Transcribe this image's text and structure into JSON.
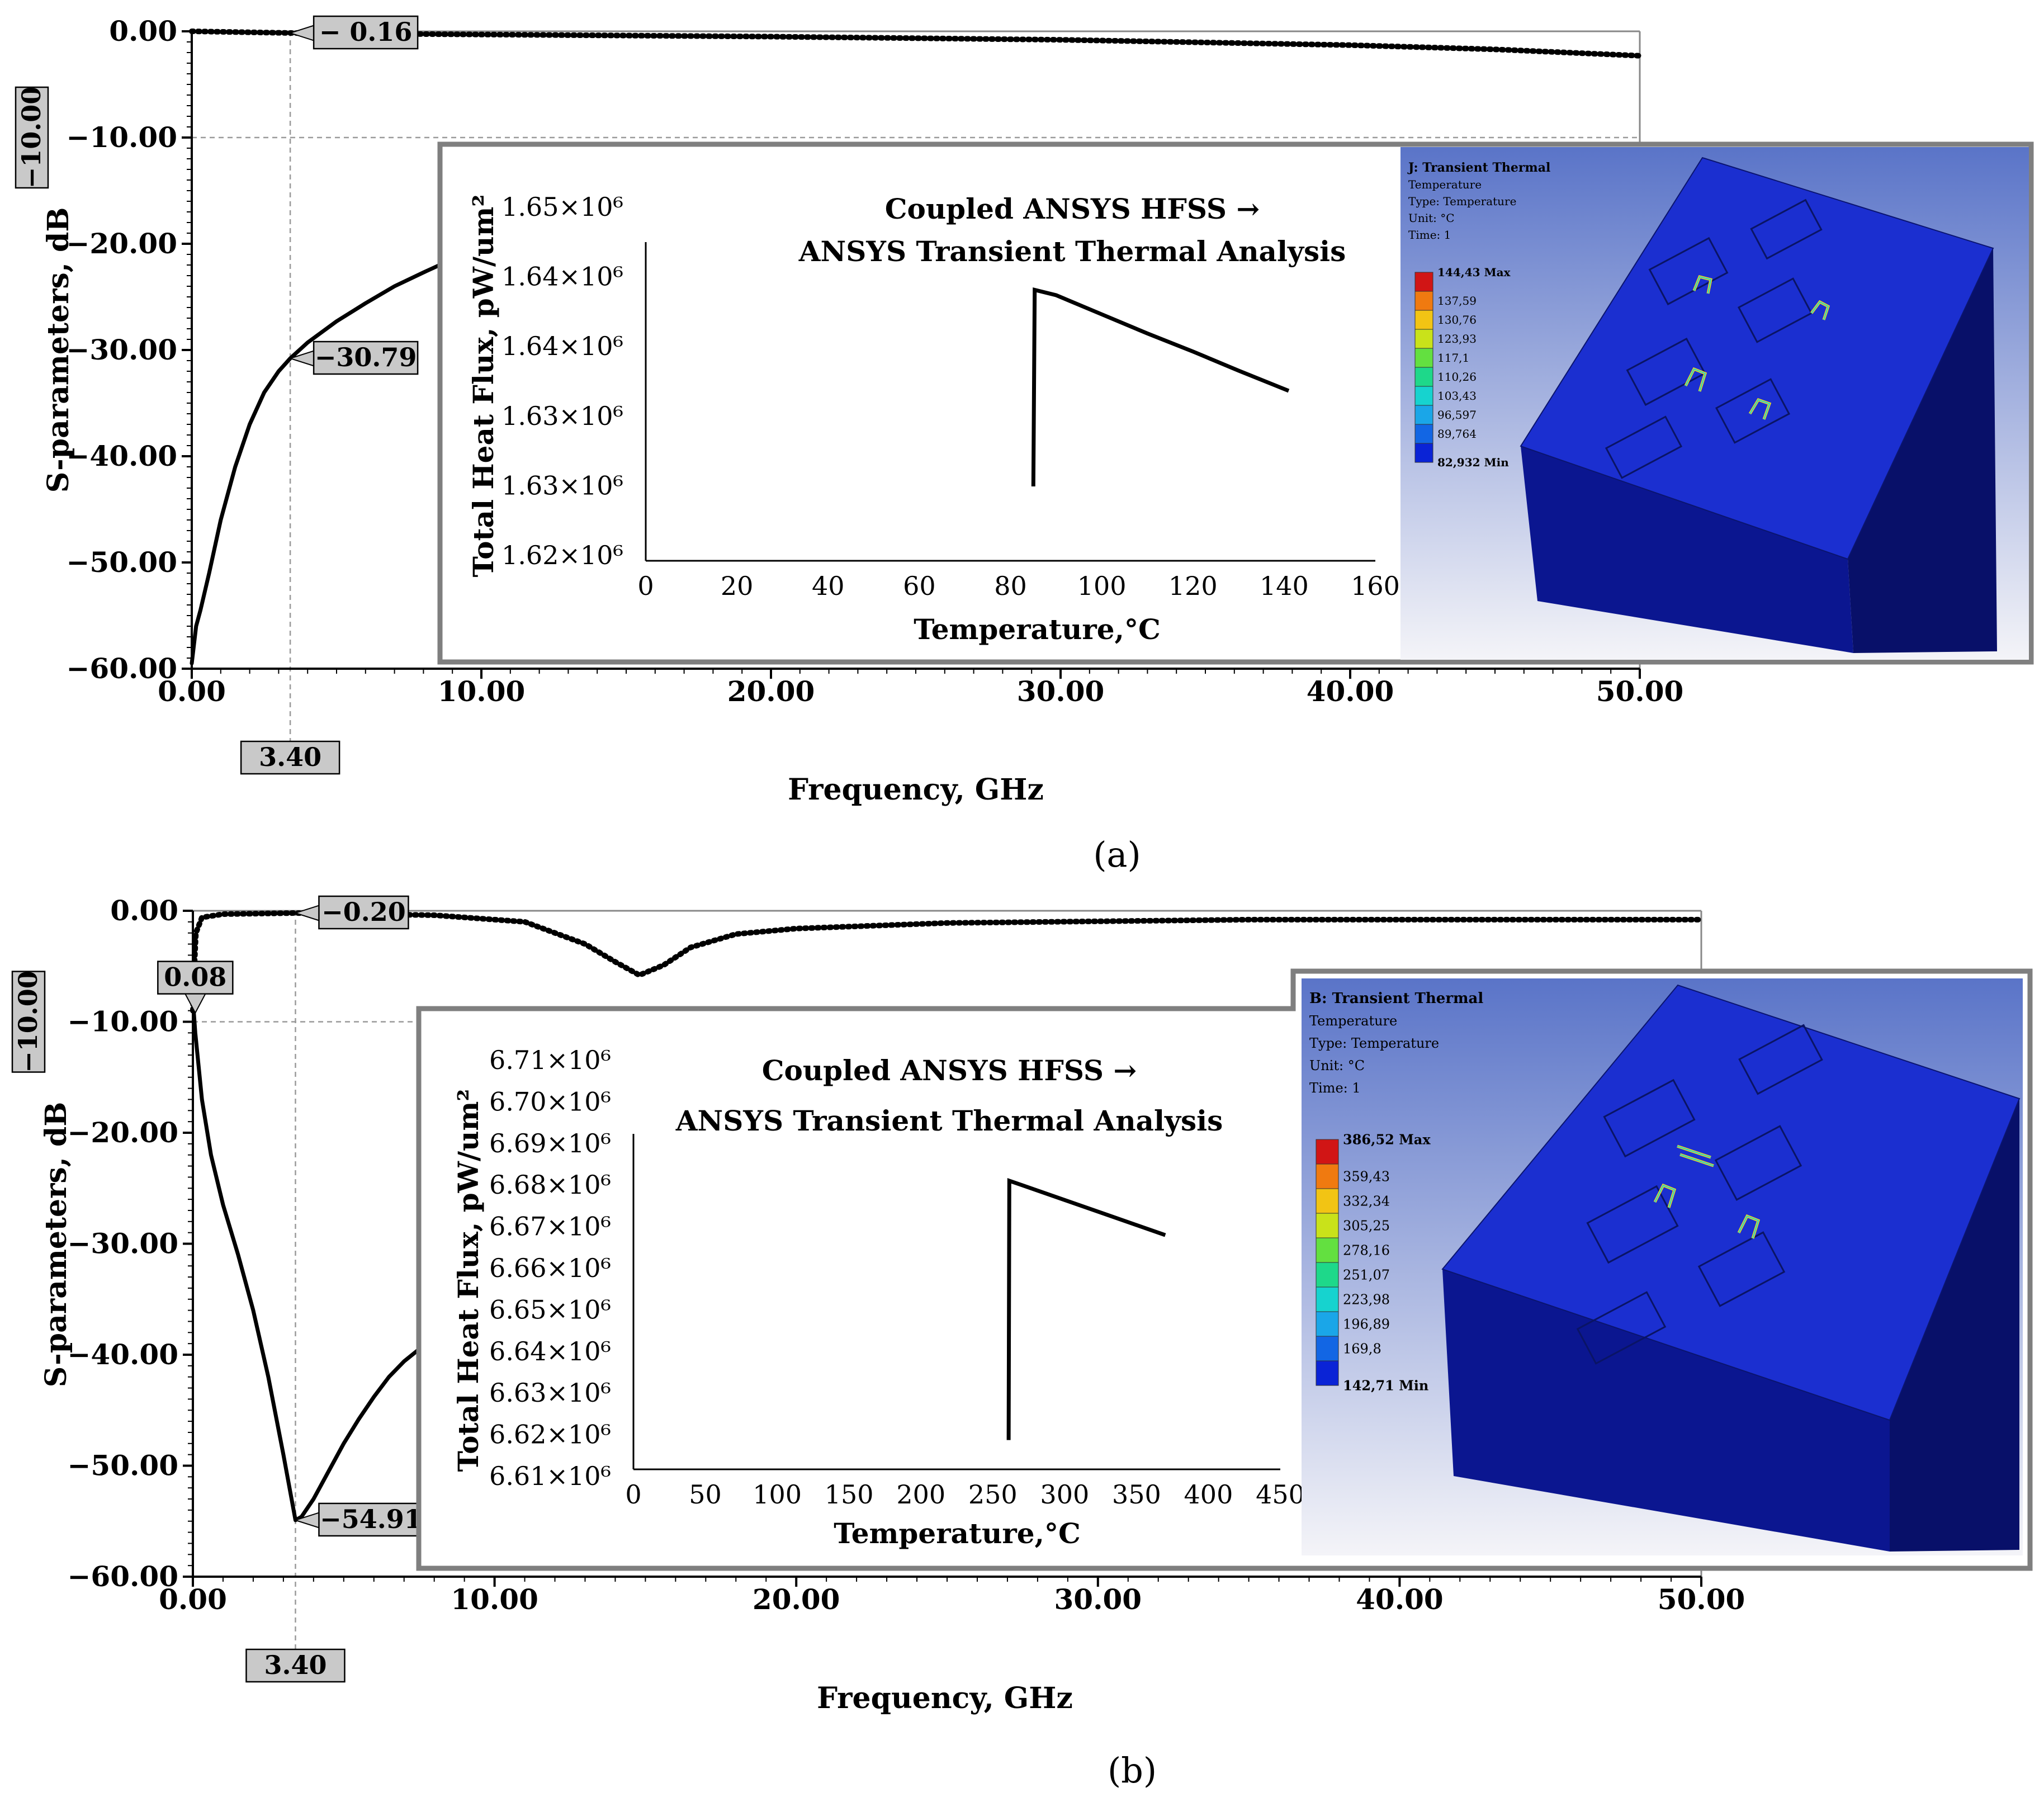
{
  "figure": {
    "panel_a_label": "(a)",
    "panel_b_label": "(b)",
    "inset_title_line1": "Coupled ANSYS HFSS →",
    "inset_title_line2": "ANSYS Transient Thermal Analysis"
  },
  "chart_data": [
    {
      "id": "a-sparams",
      "panel": "a",
      "type": "line",
      "xlabel": "Frequency, GHz",
      "ylabel": "S-parameters, dB",
      "xlim": [
        0,
        50
      ],
      "ylim": [
        -60,
        0
      ],
      "xticks": [
        "0.00",
        "10.00",
        "20.00",
        "30.00",
        "40.00",
        "50.00"
      ],
      "yticks": [
        "0.00",
        "−10.00",
        "−20.00",
        "−30.00",
        "−40.00",
        "−50.00",
        "−60.00"
      ],
      "grid": false,
      "reference_lines": {
        "x": 3.4,
        "y": -10
      },
      "series": [
        {
          "style": "dotted",
          "points": [
            [
              0,
              0
            ],
            [
              3.4,
              -0.16
            ],
            [
              5,
              -0.2
            ],
            [
              10,
              -0.3
            ],
            [
              20,
              -0.5
            ],
            [
              30,
              -0.8
            ],
            [
              40,
              -1.3
            ],
            [
              45,
              -1.7
            ],
            [
              50,
              -2.3
            ]
          ]
        },
        {
          "style": "solid",
          "points": [
            [
              0,
              -59.5
            ],
            [
              0.15,
              -56
            ],
            [
              0.3,
              -54.5
            ],
            [
              0.6,
              -51
            ],
            [
              1,
              -46
            ],
            [
              1.5,
              -41
            ],
            [
              2,
              -37
            ],
            [
              2.5,
              -34
            ],
            [
              3,
              -32
            ],
            [
              3.4,
              -30.79
            ],
            [
              4,
              -29.3
            ],
            [
              5,
              -27.3
            ],
            [
              6,
              -25.6
            ],
            [
              7,
              -24
            ],
            [
              8,
              -22.7
            ],
            [
              8.8,
              -21.7
            ]
          ]
        }
      ],
      "markers": [
        {
          "x": 3.4,
          "y": -0.16,
          "label": "− 0.16"
        },
        {
          "x": 3.4,
          "y": -30.79,
          "label": "−30.79"
        }
      ],
      "x_marker_label": "3.40",
      "y_marker_label": "−10.00"
    },
    {
      "id": "a-heatflux",
      "panel": "a",
      "type": "line",
      "xlabel": "Temperature,°C",
      "ylabel": "Total Heat Flux, pW/um²",
      "xlim": [
        0,
        160
      ],
      "ylim": [
        1.62,
        1.65
      ],
      "xticks": [
        "0",
        "20",
        "40",
        "60",
        "80",
        "100",
        "120",
        "140",
        "160"
      ],
      "yticks": [
        "1.65×10⁶",
        "1.64×10⁶",
        "1.64×10⁶",
        "1.63×10⁶",
        "1.63×10⁶",
        "1.62×10⁶"
      ],
      "grid": false,
      "series": [
        {
          "style": "solid",
          "points": [
            [
              85,
              1.627
            ],
            [
              85.3,
              1.6455
            ],
            [
              90,
              1.645
            ],
            [
              100,
              1.6432
            ],
            [
              110,
              1.6414
            ],
            [
              120,
              1.6397
            ],
            [
              130,
              1.6379
            ],
            [
              141,
              1.636
            ]
          ]
        }
      ]
    },
    {
      "id": "b-sparams",
      "panel": "b",
      "type": "line",
      "xlabel": "Frequency, GHz",
      "ylabel": "S-parameters, dB",
      "xlim": [
        0,
        50
      ],
      "ylim": [
        -60,
        0
      ],
      "xticks": [
        "0.00",
        "10.00",
        "20.00",
        "30.00",
        "40.00",
        "50.00"
      ],
      "yticks": [
        "0.00",
        "−10.00",
        "−20.00",
        "−30.00",
        "−40.00",
        "−50.00",
        "−60.00"
      ],
      "grid": false,
      "reference_lines": {
        "x": 3.4,
        "y": -10
      },
      "series": [
        {
          "style": "dotted",
          "points": [
            [
              0,
              -9
            ],
            [
              0.05,
              -5
            ],
            [
              0.1,
              -2
            ],
            [
              0.3,
              -0.6
            ],
            [
              1,
              -0.3
            ],
            [
              3.4,
              -0.2
            ],
            [
              8,
              -0.4
            ],
            [
              11,
              -1
            ],
            [
              13,
              -3
            ],
            [
              14,
              -4.6
            ],
            [
              14.8,
              -5.8
            ],
            [
              15.6,
              -4.9
            ],
            [
              16.5,
              -3.3
            ],
            [
              18,
              -2.1
            ],
            [
              20,
              -1.6
            ],
            [
              25,
              -1.1
            ],
            [
              35,
              -0.8
            ],
            [
              50,
              -0.8
            ]
          ]
        },
        {
          "style": "solid",
          "points": [
            [
              0,
              -8
            ],
            [
              0.08,
              -11
            ],
            [
              0.3,
              -17
            ],
            [
              0.6,
              -22
            ],
            [
              1,
              -26.5
            ],
            [
              1.5,
              -31
            ],
            [
              2,
              -36
            ],
            [
              2.5,
              -42
            ],
            [
              3,
              -49
            ],
            [
              3.4,
              -54.91
            ],
            [
              3.6,
              -54.6
            ],
            [
              4,
              -53
            ],
            [
              4.5,
              -50.5
            ],
            [
              5,
              -48
            ],
            [
              5.5,
              -45.8
            ],
            [
              6,
              -43.8
            ],
            [
              6.5,
              -42
            ],
            [
              7,
              -40.6
            ],
            [
              7.5,
              -39.5
            ]
          ]
        }
      ],
      "markers": [
        {
          "x": 3.4,
          "y": -0.2,
          "label": "−0.20"
        },
        {
          "x": 0.08,
          "y": -9.5,
          "label": "0.08"
        },
        {
          "x": 3.4,
          "y": -54.91,
          "label": "−54.91"
        }
      ],
      "x_marker_label": "3.40",
      "y_marker_label": "−10.00"
    },
    {
      "id": "b-heatflux",
      "panel": "b",
      "type": "line",
      "xlabel": "Temperature,°C",
      "ylabel": "Total Heat Flux, pW/um²",
      "xlim": [
        0,
        450
      ],
      "ylim": [
        6.61,
        6.71
      ],
      "xticks": [
        "0",
        "50",
        "100",
        "150",
        "200",
        "250",
        "300",
        "350",
        "400",
        "450"
      ],
      "yticks": [
        "6.71×10⁶",
        "6.70×10⁶",
        "6.69×10⁶",
        "6.68×10⁶",
        "6.67×10⁶",
        "6.66×10⁶",
        "6.65×10⁶",
        "6.64×10⁶",
        "6.63×10⁶",
        "6.62×10⁶",
        "6.61×10⁶"
      ],
      "grid": false,
      "series": [
        {
          "style": "solid",
          "points": [
            [
              261,
              6.617
            ],
            [
              261.5,
              6.679
            ],
            [
              270,
              6.678
            ],
            [
              300,
              6.6744
            ],
            [
              330,
              6.6708
            ],
            [
              370,
              6.666
            ]
          ]
        }
      ]
    }
  ],
  "thermal_views": [
    {
      "panel": "a",
      "title": "J: Transient Thermal",
      "lines": [
        "Temperature",
        "Type: Temperature",
        "Unit: °C",
        "Time: 1"
      ],
      "legend": [
        "144,43 Max",
        "137,59",
        "130,76",
        "123,93",
        "117,1",
        "110,26",
        "103,43",
        "96,597",
        "89,764",
        "82,932 Min"
      ],
      "legend_colors": [
        "#d11515",
        "#f07a10",
        "#f2c414",
        "#c9e21a",
        "#63e040",
        "#1ed88a",
        "#16d3cf",
        "#1aa6e8",
        "#1266e4",
        "#0a23d6"
      ],
      "model_color": "#1b2fd0"
    },
    {
      "panel": "b",
      "title": "B: Transient Thermal",
      "lines": [
        "Temperature",
        "Type: Temperature",
        "Unit: °C",
        "Time: 1"
      ],
      "legend": [
        "386,52 Max",
        "359,43",
        "332,34",
        "305,25",
        "278,16",
        "251,07",
        "223,98",
        "196,89",
        "169,8",
        "142,71 Min"
      ],
      "legend_colors": [
        "#d11515",
        "#f07a10",
        "#f2c414",
        "#c9e21a",
        "#63e040",
        "#1ed88a",
        "#16d3cf",
        "#1aa6e8",
        "#1266e4",
        "#0a23d6"
      ],
      "model_color": "#1b2fd0"
    }
  ]
}
